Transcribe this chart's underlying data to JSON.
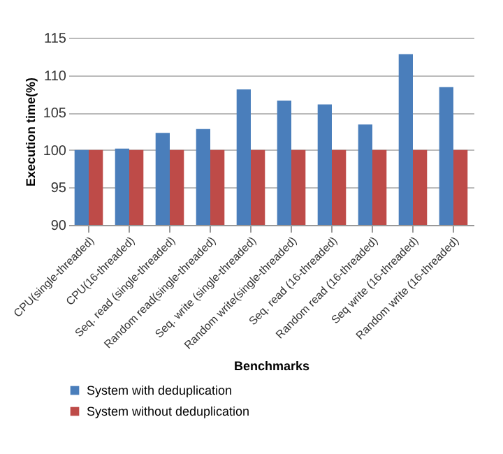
{
  "chart_data": {
    "type": "bar",
    "xlabel": "Benchmarks",
    "ylabel": "Execution time(%)",
    "categories": [
      "CPU(single-threaded)",
      "CPU(16-threaded)",
      "Seq. read (single-threaded)",
      "Random read(single-threaded)",
      "Seq. write (single-threaded)",
      "Random write(single-threaded)",
      "Seq. read (16-threaded)",
      "Random read (16-threaded)",
      "Seq write (16-threaded)",
      "Random write (16-threaded)"
    ],
    "series": [
      {
        "name": "System with deduplication",
        "color": "#4a7ebb",
        "values": [
          100,
          100.2,
          102.3,
          102.8,
          108.1,
          106.6,
          106.1,
          103.4,
          112.8,
          108.4
        ]
      },
      {
        "name": "System without deduplication",
        "color": "#be4b48",
        "values": [
          100,
          100,
          100,
          100,
          100,
          100,
          100,
          100,
          100,
          100
        ]
      }
    ],
    "ylim": [
      90,
      115
    ],
    "yticks": [
      90,
      95,
      100,
      105,
      110,
      115
    ],
    "grid": "y",
    "legend": "bottom"
  }
}
